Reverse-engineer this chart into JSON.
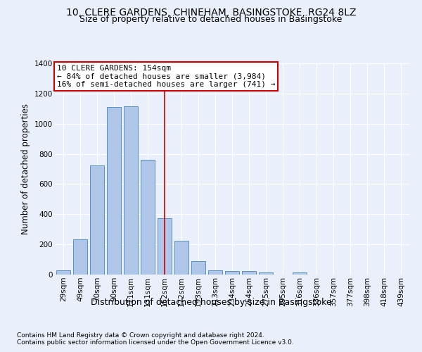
{
  "title1": "10, CLERE GARDENS, CHINEHAM, BASINGSTOKE, RG24 8LZ",
  "title2": "Size of property relative to detached houses in Basingstoke",
  "xlabel": "Distribution of detached houses by size in Basingstoke",
  "ylabel": "Number of detached properties",
  "categories": [
    "29sqm",
    "49sqm",
    "70sqm",
    "90sqm",
    "111sqm",
    "131sqm",
    "152sqm",
    "172sqm",
    "193sqm",
    "213sqm",
    "234sqm",
    "254sqm",
    "275sqm",
    "295sqm",
    "316sqm",
    "336sqm",
    "357sqm",
    "377sqm",
    "398sqm",
    "418sqm",
    "439sqm"
  ],
  "values": [
    30,
    235,
    725,
    1110,
    1115,
    760,
    375,
    225,
    90,
    30,
    25,
    22,
    15,
    0,
    12,
    0,
    0,
    0,
    0,
    0,
    0
  ],
  "bar_color": "#aec6e8",
  "bar_edge_color": "#5a8fc0",
  "annotation_title": "10 CLERE GARDENS: 154sqm",
  "annotation_line1": "← 84% of detached houses are smaller (3,984)",
  "annotation_line2": "16% of semi-detached houses are larger (741) →",
  "vline_color": "#cc0000",
  "annotation_box_edge": "#cc0000",
  "footer1": "Contains HM Land Registry data © Crown copyright and database right 2024.",
  "footer2": "Contains public sector information licensed under the Open Government Licence v3.0.",
  "ylim": [
    0,
    1400
  ],
  "yticks": [
    0,
    200,
    400,
    600,
    800,
    1000,
    1200,
    1400
  ],
  "bg_color": "#eaf0fb",
  "plot_bg_color": "#eaf0fb",
  "grid_color": "#ffffff",
  "title_fontsize": 10,
  "subtitle_fontsize": 9,
  "tick_fontsize": 7.5,
  "ylabel_fontsize": 8.5,
  "xlabel_fontsize": 9,
  "annotation_fontsize": 8,
  "footer_fontsize": 6.5,
  "vline_x_index": 6.0
}
